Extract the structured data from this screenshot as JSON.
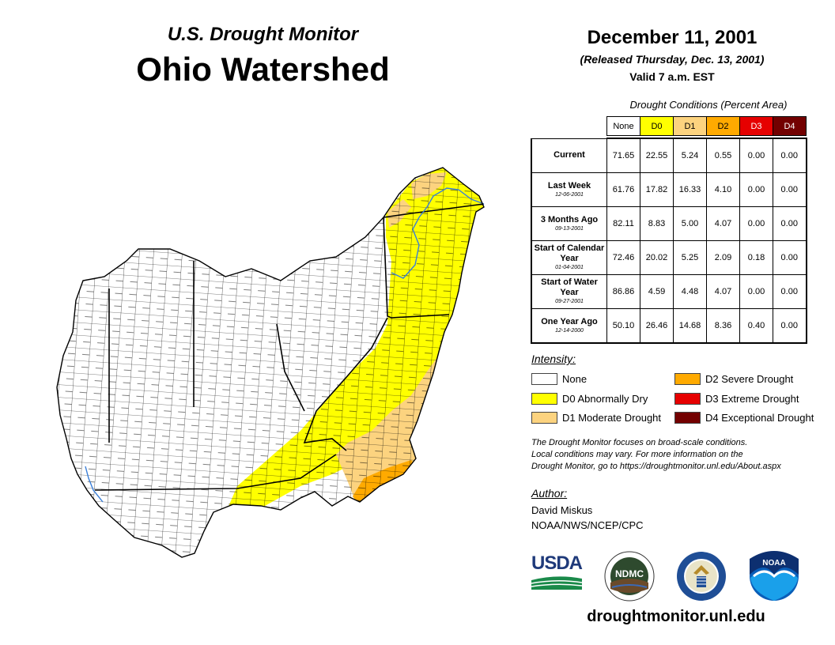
{
  "header": {
    "subtitle": "U.S. Drought Monitor",
    "title": "Ohio Watershed",
    "date": "December 11, 2001",
    "released": "(Released Thursday, Dec. 13, 2001)",
    "valid": "Valid 7 a.m. EST"
  },
  "conditions": {
    "title": "Drought Conditions (Percent Area)",
    "columns": [
      "None",
      "D0",
      "D1",
      "D2",
      "D3",
      "D4"
    ],
    "column_colors": [
      "#ffffff",
      "#ffff00",
      "#fcd37f",
      "#ffaa00",
      "#e60000",
      "#730000"
    ],
    "rows": [
      {
        "label": "Current",
        "date": "",
        "values": [
          "71.65",
          "22.55",
          "5.24",
          "0.55",
          "0.00",
          "0.00"
        ]
      },
      {
        "label": "Last Week",
        "date": "12-06-2001",
        "values": [
          "61.76",
          "17.82",
          "16.33",
          "4.10",
          "0.00",
          "0.00"
        ]
      },
      {
        "label": "3 Months Ago",
        "date": "09-13-2001",
        "values": [
          "82.11",
          "8.83",
          "5.00",
          "4.07",
          "0.00",
          "0.00"
        ]
      },
      {
        "label": "Start of Calendar Year",
        "date": "01-04-2001",
        "values": [
          "72.46",
          "20.02",
          "5.25",
          "2.09",
          "0.18",
          "0.00"
        ]
      },
      {
        "label": "Start of Water Year",
        "date": "09-27-2001",
        "values": [
          "86.86",
          "4.59",
          "4.48",
          "4.07",
          "0.00",
          "0.00"
        ]
      },
      {
        "label": "One Year Ago",
        "date": "12-14-2000",
        "values": [
          "50.10",
          "26.46",
          "14.68",
          "8.36",
          "0.40",
          "0.00"
        ]
      }
    ]
  },
  "legend": {
    "title": "Intensity:",
    "items": [
      {
        "label": "None",
        "color": "#ffffff"
      },
      {
        "label": "D0 Abnormally Dry",
        "color": "#ffff00"
      },
      {
        "label": "D1 Moderate Drought",
        "color": "#fcd37f"
      },
      {
        "label": "D2 Severe Drought",
        "color": "#ffaa00"
      },
      {
        "label": "D3 Extreme Drought",
        "color": "#e60000"
      },
      {
        "label": "D4 Exceptional Drought",
        "color": "#730000"
      }
    ]
  },
  "note": {
    "line1": "The Drought Monitor focuses on broad-scale conditions.",
    "line2": "Local conditions may vary. For more information on the",
    "line3": "Drought Monitor, go to https://droughtmonitor.unl.edu/About.aspx"
  },
  "author": {
    "title": "Author:",
    "name": "David Miskus",
    "org": "NOAA/NWS/NCEP/CPC"
  },
  "logos": {
    "usda": "USDA",
    "ndmc": "NDMC",
    "noaa": "NOAA"
  },
  "footer": {
    "site": "droughtmonitor.unl.edu"
  }
}
